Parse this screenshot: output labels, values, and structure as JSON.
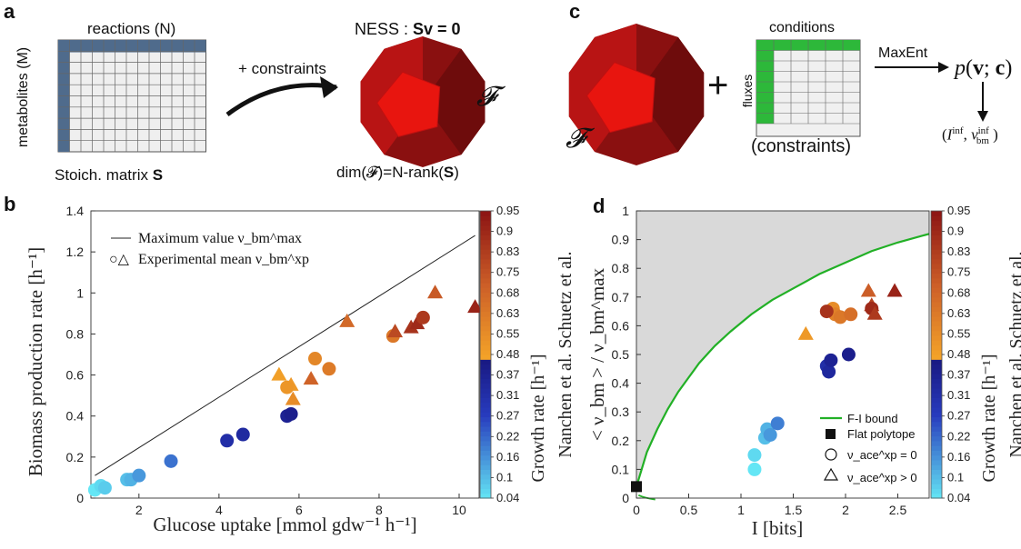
{
  "panels": {
    "a": {
      "letter": "a",
      "header": "reactions (N)",
      "side_label": "metabolites (M)",
      "matrix_label": "Stoich. matrix",
      "matrix_symbol": "S",
      "arrow_label": "+ constraints",
      "ness_label": "NESS : ",
      "ness_eq": "Sv = 0",
      "polytope_symbol": "𝓕",
      "dim_label": "dim(𝓕)=N-rank(",
      "dim_symbol": "S",
      "dim_close": ")"
    },
    "c": {
      "letter": "c",
      "polytope_symbol": "𝓕",
      "plus": "+",
      "conditions_label": "conditions",
      "fluxes_label": "fluxes",
      "constraints_label": "(constraints)",
      "maxent_label": "MaxEnt",
      "prob_label": "p(v; c)",
      "output_label": "(I^inf, ν_bm^inf)"
    },
    "b": {
      "letter": "b"
    },
    "d": {
      "letter": "d"
    }
  },
  "chart_data": [
    {
      "panel": "b",
      "type": "scatter",
      "xlabel": "Glucose uptake [mmol gdw⁻¹ h⁻¹]",
      "ylabel": "Biomass production rate [h⁻¹]",
      "xlim": [
        0.8,
        10.5
      ],
      "ylim": [
        0,
        1.4
      ],
      "xticks": [
        "2",
        "4",
        "6",
        "8",
        "10"
      ],
      "yticks": [
        "0",
        "0.2",
        "0.4",
        "0.6",
        "0.8",
        "1",
        "1.2",
        "1.4"
      ],
      "legend": [
        "Maximum value ν_bm^max",
        "Experimental mean ν_bm^xp"
      ],
      "legend_marker_label": "○△",
      "max_line": [
        [
          0.9,
          0.11
        ],
        [
          10.4,
          1.28
        ]
      ],
      "points": [
        {
          "x": 0.9,
          "y": 0.04,
          "c": 0.04,
          "m": "o"
        },
        {
          "x": 1.05,
          "y": 0.06,
          "c": 0.06,
          "m": "o"
        },
        {
          "x": 1.15,
          "y": 0.05,
          "c": 0.08,
          "m": "o"
        },
        {
          "x": 1.7,
          "y": 0.09,
          "c": 0.1,
          "m": "o"
        },
        {
          "x": 1.8,
          "y": 0.09,
          "c": 0.12,
          "m": "o"
        },
        {
          "x": 2.0,
          "y": 0.11,
          "c": 0.16,
          "m": "o"
        },
        {
          "x": 2.8,
          "y": 0.18,
          "c": 0.22,
          "m": "o"
        },
        {
          "x": 4.2,
          "y": 0.28,
          "c": 0.37,
          "m": "o"
        },
        {
          "x": 4.6,
          "y": 0.31,
          "c": 0.39,
          "m": "o"
        },
        {
          "x": 5.7,
          "y": 0.4,
          "c": 0.43,
          "m": "o"
        },
        {
          "x": 5.8,
          "y": 0.41,
          "c": 0.45,
          "m": "o"
        },
        {
          "x": 5.5,
          "y": 0.6,
          "c": 0.5,
          "m": "^"
        },
        {
          "x": 5.8,
          "y": 0.55,
          "c": 0.52,
          "m": "^"
        },
        {
          "x": 5.85,
          "y": 0.48,
          "c": 0.56,
          "m": "^"
        },
        {
          "x": 5.7,
          "y": 0.54,
          "c": 0.53,
          "m": "o"
        },
        {
          "x": 6.4,
          "y": 0.68,
          "c": 0.58,
          "m": "o"
        },
        {
          "x": 6.75,
          "y": 0.63,
          "c": 0.62,
          "m": "o"
        },
        {
          "x": 6.3,
          "y": 0.58,
          "c": 0.7,
          "m": "^"
        },
        {
          "x": 7.2,
          "y": 0.86,
          "c": 0.68,
          "m": "^"
        },
        {
          "x": 8.35,
          "y": 0.79,
          "c": 0.63,
          "m": "o"
        },
        {
          "x": 8.4,
          "y": 0.81,
          "c": 0.78,
          "m": "^"
        },
        {
          "x": 8.8,
          "y": 0.83,
          "c": 0.85,
          "m": "^"
        },
        {
          "x": 8.95,
          "y": 0.85,
          "c": 0.88,
          "m": "^"
        },
        {
          "x": 9.1,
          "y": 0.88,
          "c": 0.83,
          "m": "o"
        },
        {
          "x": 9.4,
          "y": 1.0,
          "c": 0.73,
          "m": "^"
        },
        {
          "x": 10.4,
          "y": 0.93,
          "c": 0.9,
          "m": "^"
        }
      ],
      "colorbar": {
        "label": "Growth rate [h⁻¹]",
        "source": "Nanchen et al. Schuetz et al.",
        "ticks": [
          "0.04",
          "0.1",
          "0.16",
          "0.22",
          "0.27",
          "0.31",
          "0.37",
          "0.48",
          "0.55",
          "0.63",
          "0.68",
          "0.75",
          "0.83",
          "0.9",
          "0.95"
        ]
      }
    },
    {
      "panel": "d",
      "type": "scatter",
      "xlabel": "I [bits]",
      "ylabel": "< ν_bm > / ν_bm^max",
      "xlim": [
        0,
        2.8
      ],
      "ylim": [
        0,
        1
      ],
      "xticks": [
        "0",
        "0.5",
        "1",
        "1.5",
        "2",
        "2.5"
      ],
      "yticks": [
        "0",
        "0.1",
        "0.2",
        "0.3",
        "0.4",
        "0.5",
        "0.6",
        "0.7",
        "0.8",
        "0.9",
        "1"
      ],
      "legend": [
        "F-I bound",
        "Flat polytope",
        "ν_ace^xp = 0",
        "ν_ace^xp > 0"
      ],
      "bound": [
        [
          0,
          0.04
        ],
        [
          0.05,
          0.1
        ],
        [
          0.1,
          0.16
        ],
        [
          0.2,
          0.24
        ],
        [
          0.3,
          0.31
        ],
        [
          0.4,
          0.37
        ],
        [
          0.5,
          0.42
        ],
        [
          0.6,
          0.47
        ],
        [
          0.75,
          0.53
        ],
        [
          0.9,
          0.58
        ],
        [
          1.1,
          0.64
        ],
        [
          1.3,
          0.69
        ],
        [
          1.5,
          0.73
        ],
        [
          1.75,
          0.78
        ],
        [
          2.0,
          0.82
        ],
        [
          2.25,
          0.86
        ],
        [
          2.5,
          0.89
        ],
        [
          2.8,
          0.92
        ]
      ],
      "flat_polytope": [
        0,
        0.04
      ],
      "points": [
        {
          "x": 1.13,
          "y": 0.1,
          "c": 0.04,
          "m": "o"
        },
        {
          "x": 1.13,
          "y": 0.15,
          "c": 0.06,
          "m": "o"
        },
        {
          "x": 1.23,
          "y": 0.21,
          "c": 0.1,
          "m": "o"
        },
        {
          "x": 1.25,
          "y": 0.24,
          "c": 0.12,
          "m": "o"
        },
        {
          "x": 1.28,
          "y": 0.22,
          "c": 0.16,
          "m": "o"
        },
        {
          "x": 1.35,
          "y": 0.26,
          "c": 0.2,
          "m": "o"
        },
        {
          "x": 1.82,
          "y": 0.46,
          "c": 0.37,
          "m": "o"
        },
        {
          "x": 1.84,
          "y": 0.44,
          "c": 0.4,
          "m": "o"
        },
        {
          "x": 1.86,
          "y": 0.48,
          "c": 0.43,
          "m": "o"
        },
        {
          "x": 2.03,
          "y": 0.5,
          "c": 0.45,
          "m": "o"
        },
        {
          "x": 1.62,
          "y": 0.57,
          "c": 0.52,
          "m": "^"
        },
        {
          "x": 1.88,
          "y": 0.66,
          "c": 0.56,
          "m": "o"
        },
        {
          "x": 1.9,
          "y": 0.64,
          "c": 0.6,
          "m": "o"
        },
        {
          "x": 1.95,
          "y": 0.63,
          "c": 0.63,
          "m": "o"
        },
        {
          "x": 2.05,
          "y": 0.64,
          "c": 0.66,
          "m": "o"
        },
        {
          "x": 1.82,
          "y": 0.65,
          "c": 0.85,
          "m": "o"
        },
        {
          "x": 2.22,
          "y": 0.72,
          "c": 0.72,
          "m": "^"
        },
        {
          "x": 2.25,
          "y": 0.67,
          "c": 0.8,
          "m": "^"
        },
        {
          "x": 2.25,
          "y": 0.66,
          "c": 0.88,
          "m": "o"
        },
        {
          "x": 2.28,
          "y": 0.64,
          "c": 0.83,
          "m": "^"
        },
        {
          "x": 2.47,
          "y": 0.72,
          "c": 0.9,
          "m": "^"
        }
      ],
      "colorbar": {
        "label": "Growth rate [h⁻¹]",
        "source": "Nanchen et al. Schuetz et al.",
        "ticks": [
          "0.04",
          "0.1",
          "0.16",
          "0.22",
          "0.27",
          "0.31",
          "0.37",
          "0.48",
          "0.55",
          "0.63",
          "0.68",
          "0.75",
          "0.83",
          "0.9",
          "0.95"
        ]
      }
    }
  ],
  "colors": {
    "matrix_header": "#4f6b8c",
    "polytope": "#e8150f",
    "green": "#2db83a",
    "bound": "#22b026",
    "shade": "#d9d9d9"
  }
}
